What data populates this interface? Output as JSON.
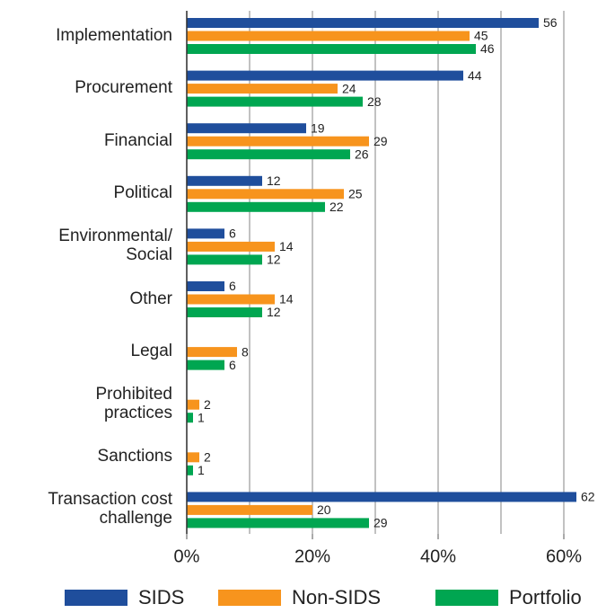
{
  "chart_data": {
    "type": "hbar",
    "categories": [
      "Implementation",
      "Procurement",
      "Financial",
      "Political",
      "Environmental/\nSocial",
      "Other",
      "Legal",
      "Prohibited\npractices",
      "Sanctions",
      "Transaction cost\nchallenge"
    ],
    "series": [
      {
        "name": "SIDS",
        "color": "#1f4e9c",
        "values": [
          56,
          44,
          19,
          12,
          6,
          6,
          null,
          null,
          null,
          62
        ]
      },
      {
        "name": "Non-SIDS",
        "color": "#f7941d",
        "values": [
          45,
          24,
          29,
          25,
          14,
          14,
          8,
          2,
          2,
          20
        ]
      },
      {
        "name": "Portfolio",
        "color": "#00a651",
        "values": [
          46,
          28,
          26,
          22,
          12,
          12,
          6,
          1,
          1,
          29
        ]
      }
    ],
    "xlim": [
      0,
      67
    ],
    "xticks": [
      {
        "value": 0,
        "label": "0%"
      },
      {
        "value": 20,
        "label": "20%"
      },
      {
        "value": 40,
        "label": "40%"
      },
      {
        "value": 60,
        "label": "60%"
      }
    ],
    "grid_lines": [
      0,
      10,
      20,
      30,
      40,
      50,
      60
    ],
    "legend": "bottom"
  }
}
